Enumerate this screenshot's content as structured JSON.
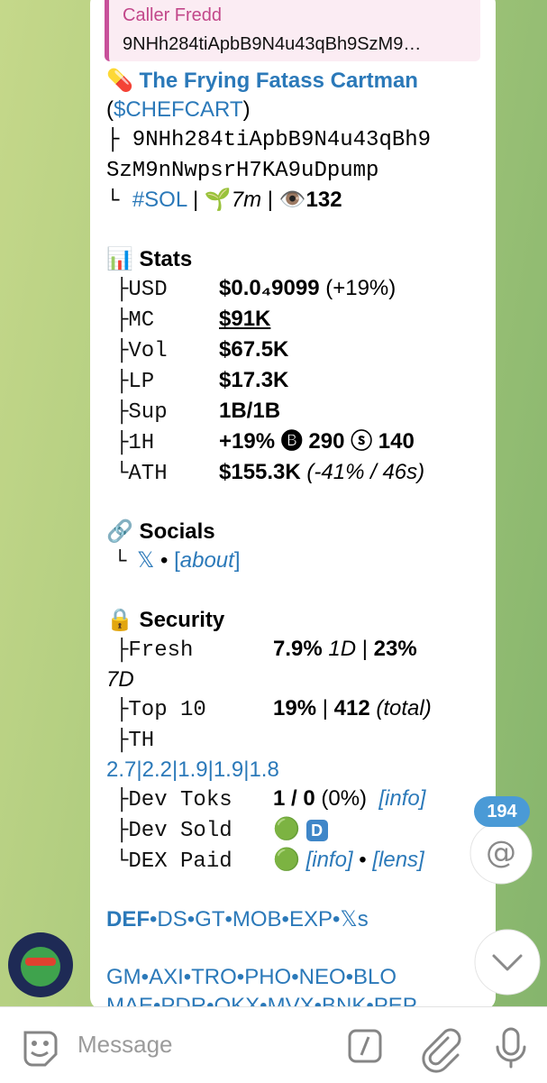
{
  "reply": {
    "name": "Caller Fredd",
    "text": "9NHh284tiApbB9N4u43qBh9SzM9…"
  },
  "message": {
    "header": [
      [
        {
          "text": "💊",
          "style": "plain"
        },
        {
          "text": " The Frying Fatass Cartman",
          "style": "link-bold"
        }
      ],
      [
        {
          "text": "(",
          "style": "plain"
        },
        {
          "text": "$CHEFCART",
          "style": "link"
        },
        {
          "text": ")",
          "style": "plain"
        }
      ],
      [
        {
          "text": "├ 9NHh284tiApbB9N4u43qBh9",
          "style": "mono"
        }
      ],
      [
        {
          "text": "SzM9nNwpsrH7KA9uDpump",
          "style": "mono"
        }
      ],
      [
        {
          "text": "└ ",
          "style": "mono"
        },
        {
          "text": "#SOL",
          "style": "link"
        },
        {
          "text": " | 🌱",
          "style": "plain"
        },
        {
          "text": "7m",
          "style": "italic"
        },
        {
          "text": " | 👁️",
          "style": "plain"
        },
        {
          "text": "132",
          "style": "bold"
        }
      ]
    ],
    "sections": [
      {
        "heading": [
          {
            "text": "📊",
            "style": "plain"
          },
          {
            "text": " Stats",
            "style": "bold"
          }
        ],
        "rows": [
          {
            "label": "├USD",
            "value": [
              {
                "text": "$0.0₄9099",
                "style": "bold"
              },
              {
                "text": " (+19%)",
                "style": "plain"
              }
            ]
          },
          {
            "label": "├MC",
            "value": [
              {
                "text": "$91K",
                "style": "bold-underline"
              }
            ]
          },
          {
            "label": "├Vol",
            "value": [
              {
                "text": "$67.5K",
                "style": "bold"
              }
            ]
          },
          {
            "label": "├LP",
            "value": [
              {
                "text": "$17.3K",
                "style": "bold"
              }
            ]
          },
          {
            "label": "├Sup",
            "value": [
              {
                "text": "1B/1B",
                "style": "bold"
              }
            ]
          },
          {
            "label": "├1H",
            "value": [
              {
                "text": "+19% 🅑 290 ⓢ 140",
                "style": "bold"
              }
            ]
          },
          {
            "label": "└ATH",
            "value": [
              {
                "text": "$155.3K",
                "style": "bold"
              },
              {
                "text": " (-41% / 46s)",
                "style": "italic"
              }
            ]
          }
        ]
      },
      {
        "heading": [
          {
            "text": "🔗",
            "style": "plain"
          },
          {
            "text": " Socials",
            "style": "bold"
          }
        ],
        "rows": [
          {
            "label": "└",
            "value": [
              {
                "text": "𝕏",
                "style": "link"
              },
              {
                "text": " • ",
                "style": "plain"
              },
              {
                "text": "[",
                "style": "link"
              },
              {
                "text": "about",
                "style": "link-italic"
              },
              {
                "text": "]",
                "style": "link"
              }
            ]
          }
        ]
      },
      {
        "heading": [
          {
            "text": "🔒",
            "style": "plain"
          },
          {
            "text": " Security",
            "style": "bold"
          }
        ],
        "rows": [
          {
            "label": "├Fresh",
            "value": [
              {
                "text": "7.9% ",
                "style": "bold"
              },
              {
                "text": "1D",
                "style": "italic"
              },
              {
                "text": " | ",
                "style": "plain"
              },
              {
                "text": "23%",
                "style": "bold"
              },
              {
                "text": " 7D",
                "style": "italic"
              }
            ]
          },
          {
            "label": "├Top 10",
            "value": [
              {
                "text": "19%",
                "style": "bold"
              },
              {
                "text": " | ",
                "style": "plain"
              },
              {
                "text": "412",
                "style": "bold"
              },
              {
                "text": " (total)",
                "style": "italic"
              }
            ]
          },
          {
            "label": "├TH",
            "value": [
              {
                "text": "2.7|",
                "style": "link"
              },
              {
                "text": "2.2|",
                "style": "link"
              },
              {
                "text": "1.9|",
                "style": "link"
              },
              {
                "text": "1.9|",
                "style": "link"
              },
              {
                "text": "1.8",
                "style": "link"
              }
            ]
          },
          {
            "label": "├Dev Toks",
            "value": [
              {
                "text": "1 / 0",
                "style": "bold"
              },
              {
                "text": " (0%)  ",
                "style": "plain"
              },
              {
                "text": "[info]",
                "style": "link-italic"
              }
            ]
          },
          {
            "label": "├Dev Sold",
            "value": [
              {
                "text": "🟢 ",
                "style": "plain"
              },
              {
                "text": "D",
                "style": "badge"
              }
            ]
          },
          {
            "label": "└DEX Paid",
            "value": [
              {
                "text": "🟢 ",
                "style": "plain"
              },
              {
                "text": "[info]",
                "style": "link-italic"
              },
              {
                "text": " • ",
                "style": "plain"
              },
              {
                "text": "[lens]",
                "style": "link-italic"
              }
            ]
          }
        ]
      }
    ],
    "footer": [
      [
        {
          "text": "DEF",
          "style": "link-bold"
        },
        {
          "text": "•DS•GT•MOB•EXP•𝕏s",
          "style": "link"
        }
      ],
      [
        {
          "text": "GM•AXI•TRO•PHO•NEO•BLO",
          "style": "link"
        }
      ],
      [
        {
          "text": "MAE•PDR•OKX•MVX•BNK•PEP",
          "style": "link"
        }
      ]
    ]
  },
  "unread_count": 194,
  "input_placeholder": "Message"
}
